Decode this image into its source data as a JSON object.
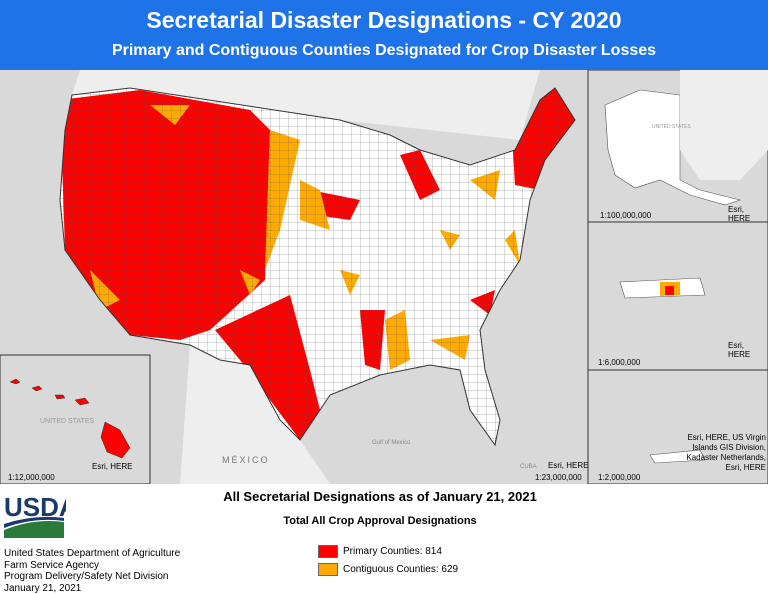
{
  "header": {
    "title": "Secretarial Disaster Designations - CY 2020",
    "subtitle": "Primary and Contiguous Counties Designated for Crop Disaster Losses"
  },
  "main_map": {
    "scale": "1:23,000,000",
    "attribution": "Esri, HERE",
    "labels": [
      "MÉXICO",
      "Gulf of Mexico",
      "CUBA"
    ]
  },
  "hawaii": {
    "scale": "1:12,000,000",
    "attribution": "Esri, HERE",
    "label": "UNITED STATES"
  },
  "alaska": {
    "scale": "1:100,000,000",
    "attribution": "Esri, HERE",
    "label": "UNITED STATES"
  },
  "puerto_rico": {
    "scale": "1:6,000,000",
    "attribution": "Esri, HERE"
  },
  "virgin_islands": {
    "scale": "1:2,000,000",
    "attribution": "Esri, HERE, US Virgin Islands GIS Division, Kadaster Netherlands, Esri, HERE"
  },
  "footer": {
    "logo": "USDA",
    "agency": [
      "United States Department of Agriculture",
      "Farm Service Agency",
      "Program Delivery/Safety Net Division",
      "January 21, 2021"
    ],
    "heading": "All Secretarial Designations as of January 21, 2021",
    "subheading": "Total All Crop Approval Designations",
    "legend": [
      {
        "label": "Primary Counties: 814",
        "color": "#ff0000"
      },
      {
        "label": "Contiguous Counties: 629",
        "color": "#ffaa00"
      }
    ]
  }
}
